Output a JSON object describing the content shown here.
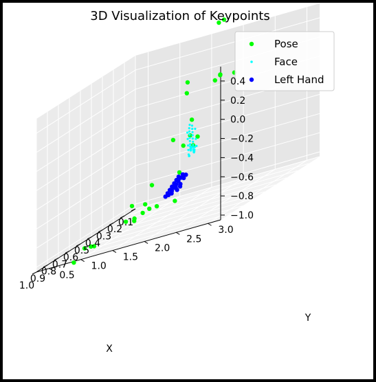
{
  "chart_data": {
    "type": "scatter",
    "projection": "3d",
    "title": "3D Visualization of Keypoints",
    "xlabel": "X",
    "ylabel": "Y",
    "zlabel": "",
    "xlim": [
      0.1,
      1.0
    ],
    "ylim": [
      0.3,
      3.2
    ],
    "zlim": [
      -1.05,
      0.55
    ],
    "x_ticks": [
      "0.1",
      "0.2",
      "0.3",
      "0.4",
      "0.5",
      "0.6",
      "0.7",
      "0.8",
      "0.9",
      "1.0"
    ],
    "y_ticks": [
      "0.5",
      "1.0",
      "1.5",
      "2.0",
      "2.5",
      "3.0"
    ],
    "z_ticks": [
      "0.4",
      "0.2",
      "0.0",
      "−0.2",
      "−0.4",
      "−0.6",
      "−0.8",
      "−1.0"
    ],
    "grid": true,
    "legend_position": "top-right",
    "series": [
      {
        "name": "Pose",
        "color": "#00ff00",
        "marker": "circle",
        "points": [
          {
            "x": 0.21,
            "y": 1.3,
            "z": 0.05
          },
          {
            "x": 0.17,
            "y": 1.4,
            "z": -0.45
          },
          {
            "x": 0.22,
            "y": 1.2,
            "z": -0.75
          },
          {
            "x": 0.3,
            "y": 0.8,
            "z": -0.95
          },
          {
            "x": 0.32,
            "y": 0.9,
            "z": -1.0
          },
          {
            "x": 0.34,
            "y": 0.7,
            "z": -1.05
          },
          {
            "x": 0.38,
            "y": 0.9,
            "z": -1.0
          },
          {
            "x": 0.4,
            "y": 0.8,
            "z": -1.05
          },
          {
            "x": 0.36,
            "y": 0.6,
            "z": -1.05
          },
          {
            "x": 0.45,
            "y": 1.5,
            "z": -0.3
          },
          {
            "x": 0.47,
            "y": 1.2,
            "z": -0.7
          },
          {
            "x": 0.3,
            "y": 1.4,
            "z": -0.45
          },
          {
            "x": 0.55,
            "y": 1.9,
            "z": 0.3
          },
          {
            "x": 0.68,
            "y": 2.7,
            "z": 0.9
          },
          {
            "x": 0.67,
            "y": 2.6,
            "z": 0.88
          },
          {
            "x": 0.6,
            "y": 2.5,
            "z": 0.3
          },
          {
            "x": 0.7,
            "y": 2.2,
            "z": -0.2
          },
          {
            "x": 0.62,
            "y": 0.5,
            "z": -1.1
          },
          {
            "x": 0.62,
            "y": 0.4,
            "z": -1.1
          },
          {
            "x": 0.66,
            "y": 0.3,
            "z": -1.2
          },
          {
            "x": 0.88,
            "y": 1.0,
            "z": -1.0
          },
          {
            "x": 0.82,
            "y": 2.8,
            "z": 0.35
          },
          {
            "x": 0.83,
            "y": 2.9,
            "z": 0.4
          },
          {
            "x": 0.76,
            "y": 3.0,
            "z": 0.35
          },
          {
            "x": 0.8,
            "y": 2.4,
            "z": 0.0
          },
          {
            "x": 0.73,
            "y": 2.3,
            "z": -0.3
          },
          {
            "x": 0.55,
            "y": 1.7,
            "z": -0.9
          },
          {
            "x": 0.31,
            "y": 1.0,
            "z": -1.0
          },
          {
            "x": 0.42,
            "y": 0.8,
            "z": -0.88
          }
        ]
      },
      {
        "name": "Face",
        "color": "#00ffff",
        "marker": "point",
        "points": [
          {
            "x": 0.22,
            "y": 1.4,
            "z": -0.3
          },
          {
            "x": 0.23,
            "y": 1.42,
            "z": -0.33
          },
          {
            "x": 0.24,
            "y": 1.44,
            "z": -0.36
          },
          {
            "x": 0.25,
            "y": 1.46,
            "z": -0.39
          },
          {
            "x": 0.26,
            "y": 1.48,
            "z": -0.42
          },
          {
            "x": 0.27,
            "y": 1.5,
            "z": -0.45
          },
          {
            "x": 0.28,
            "y": 1.52,
            "z": -0.48
          },
          {
            "x": 0.29,
            "y": 1.54,
            "z": -0.5
          },
          {
            "x": 0.3,
            "y": 1.56,
            "z": -0.52
          },
          {
            "x": 0.31,
            "y": 1.58,
            "z": -0.53
          },
          {
            "x": 0.32,
            "y": 1.6,
            "z": -0.54
          },
          {
            "x": 0.33,
            "y": 1.62,
            "z": -0.54
          },
          {
            "x": 0.34,
            "y": 1.64,
            "z": -0.53
          },
          {
            "x": 0.35,
            "y": 1.66,
            "z": -0.52
          },
          {
            "x": 0.36,
            "y": 1.68,
            "z": -0.5
          },
          {
            "x": 0.37,
            "y": 1.7,
            "z": -0.47
          },
          {
            "x": 0.23,
            "y": 1.38,
            "z": -0.28
          },
          {
            "x": 0.24,
            "y": 1.39,
            "z": -0.31
          },
          {
            "x": 0.25,
            "y": 1.41,
            "z": -0.34
          },
          {
            "x": 0.26,
            "y": 1.43,
            "z": -0.37
          },
          {
            "x": 0.27,
            "y": 1.45,
            "z": -0.4
          },
          {
            "x": 0.28,
            "y": 1.47,
            "z": -0.43
          },
          {
            "x": 0.29,
            "y": 1.49,
            "z": -0.46
          },
          {
            "x": 0.3,
            "y": 1.51,
            "z": -0.48
          },
          {
            "x": 0.31,
            "y": 1.53,
            "z": -0.5
          },
          {
            "x": 0.32,
            "y": 1.55,
            "z": -0.51
          },
          {
            "x": 0.33,
            "y": 1.57,
            "z": -0.51
          },
          {
            "x": 0.34,
            "y": 1.59,
            "z": -0.5
          },
          {
            "x": 0.35,
            "y": 1.61,
            "z": -0.48
          },
          {
            "x": 0.36,
            "y": 1.63,
            "z": -0.46
          },
          {
            "x": 0.24,
            "y": 1.36,
            "z": -0.35
          },
          {
            "x": 0.26,
            "y": 1.4,
            "z": -0.41
          },
          {
            "x": 0.28,
            "y": 1.44,
            "z": -0.47
          },
          {
            "x": 0.3,
            "y": 1.48,
            "z": -0.51
          },
          {
            "x": 0.32,
            "y": 1.52,
            "z": -0.55
          },
          {
            "x": 0.34,
            "y": 1.56,
            "z": -0.56
          },
          {
            "x": 0.36,
            "y": 1.6,
            "z": -0.55
          },
          {
            "x": 0.25,
            "y": 1.5,
            "z": -0.33
          },
          {
            "x": 0.29,
            "y": 1.58,
            "z": -0.42
          },
          {
            "x": 0.33,
            "y": 1.66,
            "z": -0.48
          }
        ]
      },
      {
        "name": "Left Hand",
        "color": "#0000ff",
        "marker": "circle",
        "points": [
          {
            "x": 0.4,
            "y": 1.5,
            "z": -0.72
          },
          {
            "x": 0.42,
            "y": 1.5,
            "z": -0.74
          },
          {
            "x": 0.44,
            "y": 1.5,
            "z": -0.76
          },
          {
            "x": 0.46,
            "y": 1.5,
            "z": -0.78
          },
          {
            "x": 0.48,
            "y": 1.5,
            "z": -0.8
          },
          {
            "x": 0.5,
            "y": 1.5,
            "z": -0.82
          },
          {
            "x": 0.42,
            "y": 1.6,
            "z": -0.7
          },
          {
            "x": 0.44,
            "y": 1.6,
            "z": -0.72
          },
          {
            "x": 0.46,
            "y": 1.6,
            "z": -0.74
          },
          {
            "x": 0.48,
            "y": 1.6,
            "z": -0.76
          },
          {
            "x": 0.5,
            "y": 1.6,
            "z": -0.78
          },
          {
            "x": 0.52,
            "y": 1.6,
            "z": -0.8
          },
          {
            "x": 0.45,
            "y": 1.7,
            "z": -0.7
          },
          {
            "x": 0.47,
            "y": 1.7,
            "z": -0.72
          },
          {
            "x": 0.5,
            "y": 1.7,
            "z": -0.76
          },
          {
            "x": 0.53,
            "y": 1.7,
            "z": -0.8
          },
          {
            "x": 0.56,
            "y": 1.8,
            "z": -0.76
          },
          {
            "x": 0.6,
            "y": 1.8,
            "z": -0.74
          },
          {
            "x": 0.52,
            "y": 1.5,
            "z": -0.84
          },
          {
            "x": 0.55,
            "y": 1.6,
            "z": -0.82
          },
          {
            "x": 0.58,
            "y": 1.7,
            "z": -0.8
          }
        ]
      }
    ]
  }
}
